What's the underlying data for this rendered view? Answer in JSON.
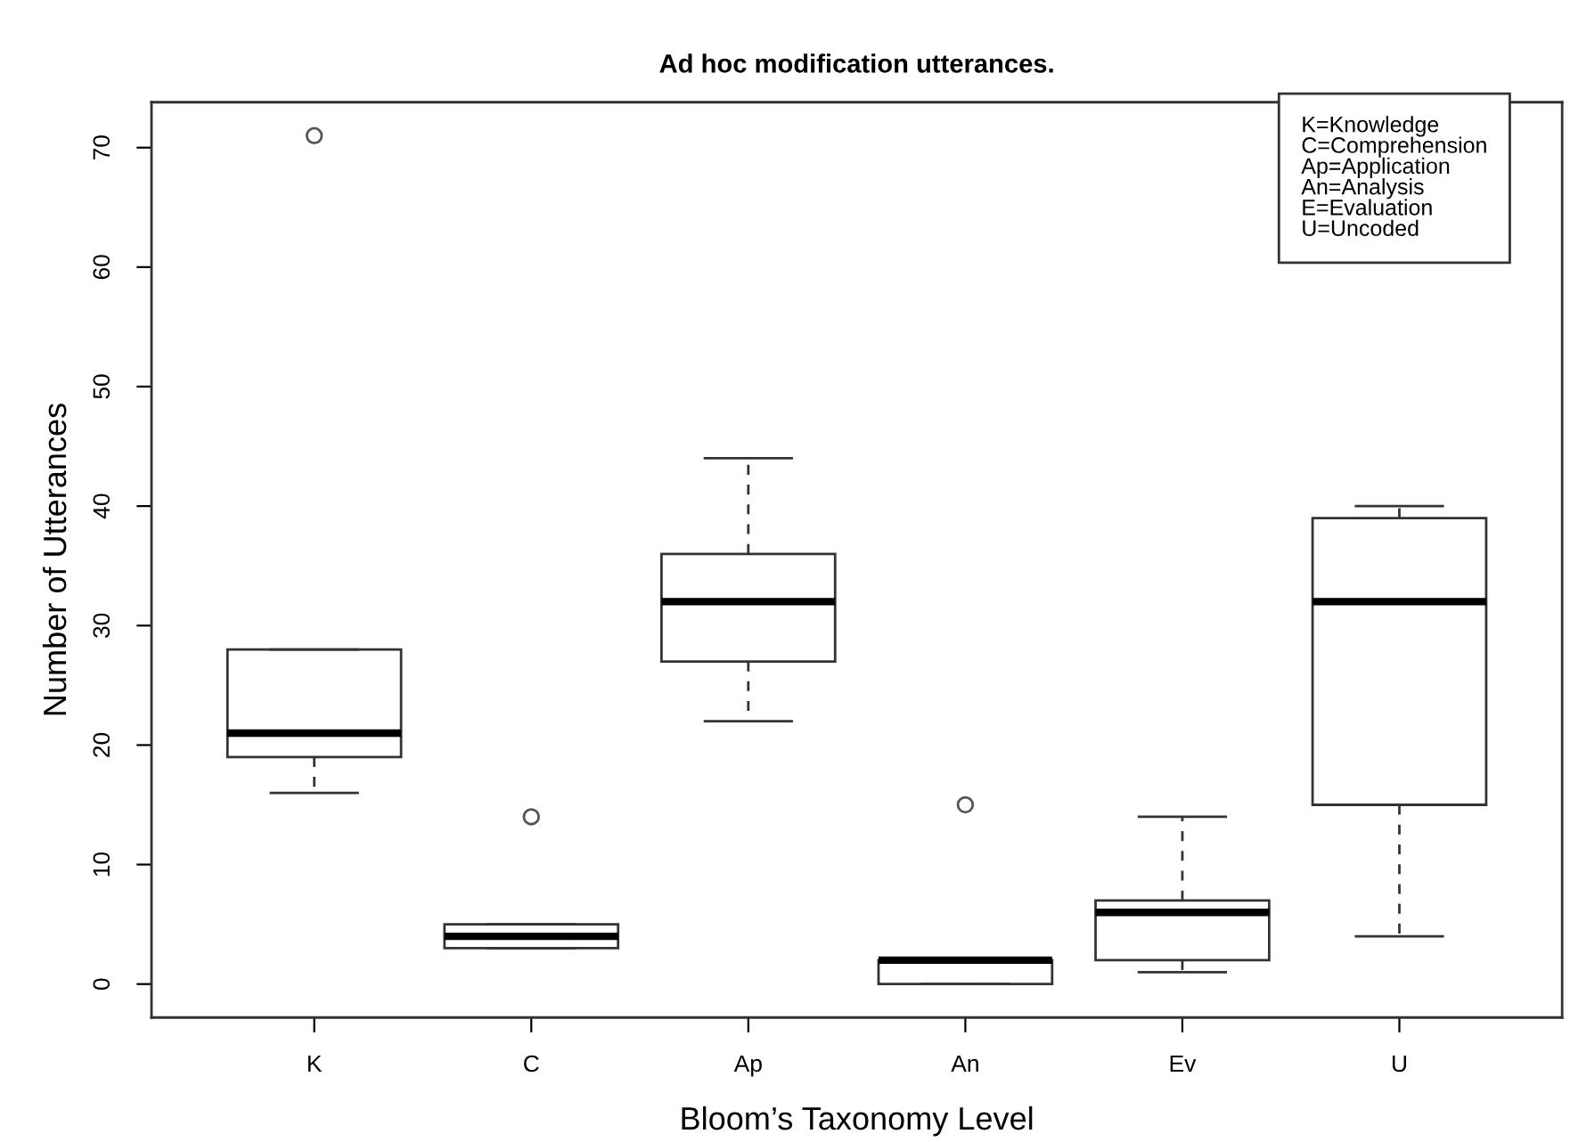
{
  "chart_data": {
    "type": "box",
    "title": "Ad hoc modification utterances.",
    "xlabel": "Bloom’s Taxonomy Level",
    "ylabel": "Number of Utterances",
    "categories": [
      "K",
      "C",
      "Ap",
      "An",
      "Ev",
      "U"
    ],
    "boxes": [
      {
        "low": 16,
        "q1": 19,
        "median": 21,
        "q3": 28,
        "high": 28,
        "outliers": [
          71
        ]
      },
      {
        "low": 3,
        "q1": 3,
        "median": 4,
        "q3": 5,
        "high": 5,
        "outliers": [
          14
        ]
      },
      {
        "low": 22,
        "q1": 27,
        "median": 32,
        "q3": 36,
        "high": 44
      },
      {
        "low": 0,
        "q1": 0,
        "median": 2,
        "q3": 2,
        "high": 2,
        "outliers": [
          15
        ]
      },
      {
        "low": 1,
        "q1": 2,
        "median": 6,
        "q3": 7,
        "high": 14
      },
      {
        "low": 4,
        "q1": 15,
        "median": 32,
        "q3": 39,
        "high": 40
      }
    ],
    "ylim": [
      -2.8,
      73.8
    ],
    "yticks": [
      0,
      10,
      20,
      30,
      40,
      50,
      60,
      70
    ],
    "marker": "circle",
    "grid": false,
    "annotations": [
      "K=Knowledge",
      "C=Comprehension",
      "Ap=Application",
      "An=Analysis",
      "E=Evaluation",
      "U=Uncoded"
    ]
  }
}
